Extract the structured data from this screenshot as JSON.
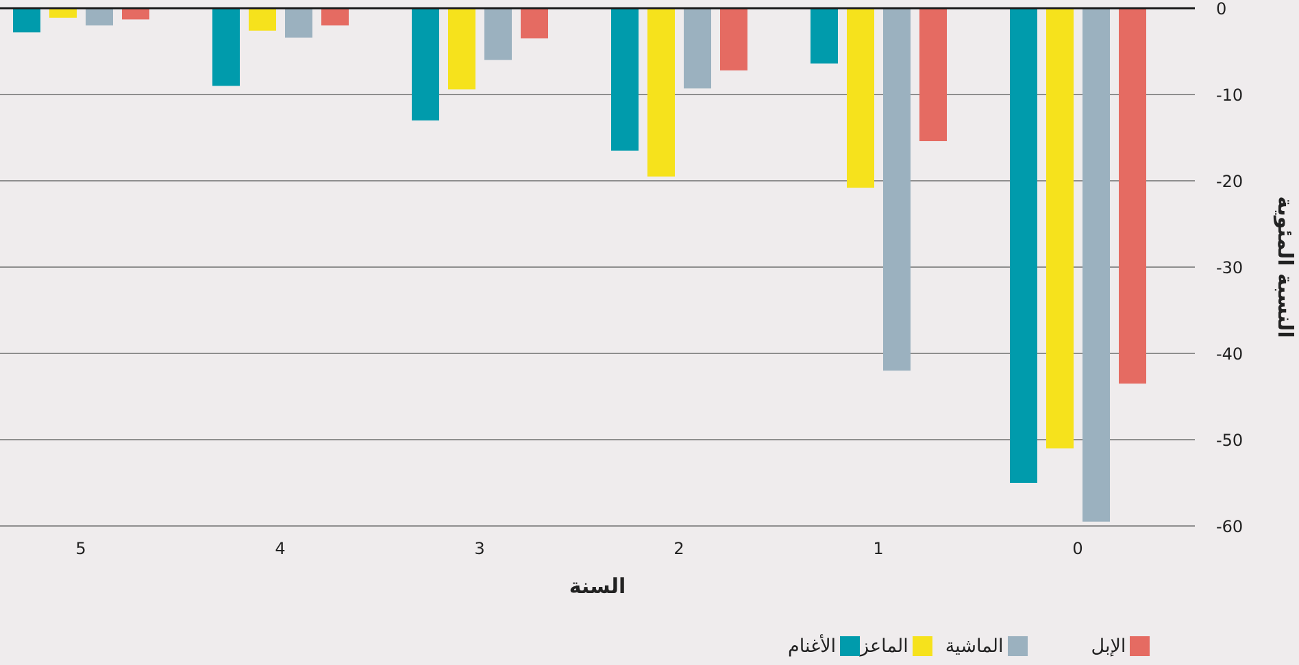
{
  "chart_data": {
    "type": "bar",
    "orientation": "vertical",
    "categories": [
      "0",
      "1",
      "2",
      "3",
      "4",
      "5"
    ],
    "series": [
      {
        "name": "الأغنام",
        "color": "#009bac",
        "values": [
          -55,
          -6.4,
          -16.5,
          -13,
          -9,
          -2.8
        ]
      },
      {
        "name": "الماعز",
        "color": "#f6e21c",
        "values": [
          -51,
          -20.8,
          -19.5,
          -9.4,
          -2.6,
          -1.1
        ]
      },
      {
        "name": "الماشية",
        "color": "#9bb1bf",
        "values": [
          -59.5,
          -42,
          -9.3,
          -6,
          -3.4,
          -2
        ]
      },
      {
        "name": "الإبل",
        "color": "#e56b62",
        "values": [
          -43.5,
          -15.4,
          -7.2,
          -3.5,
          -2,
          -1.3
        ]
      }
    ],
    "series_order_within_group": [
      "الإبل",
      "الماشية",
      "الماعز",
      "الأغنام"
    ],
    "xlabel": "السنة",
    "ylabel": "النسبة المئوية",
    "ylim": [
      -60,
      0
    ],
    "yticks": [
      0,
      -10,
      -20,
      -30,
      -40,
      -50,
      -60
    ],
    "ytick_labels": [
      "0",
      "-10",
      "-20",
      "-30",
      "-40",
      "-50",
      "-60"
    ],
    "x_direction": "right-to-left",
    "y_axis_side": "right",
    "grid": true,
    "legend_position": "bottom",
    "legend_entries": [
      {
        "label": "الإبل",
        "color": "#e56b62"
      },
      {
        "label": "الماشية",
        "color": "#9bb1bf"
      },
      {
        "label": "الماعز",
        "color": "#f6e21c"
      },
      {
        "label": "الأغنام",
        "color": "#009bac"
      }
    ]
  }
}
